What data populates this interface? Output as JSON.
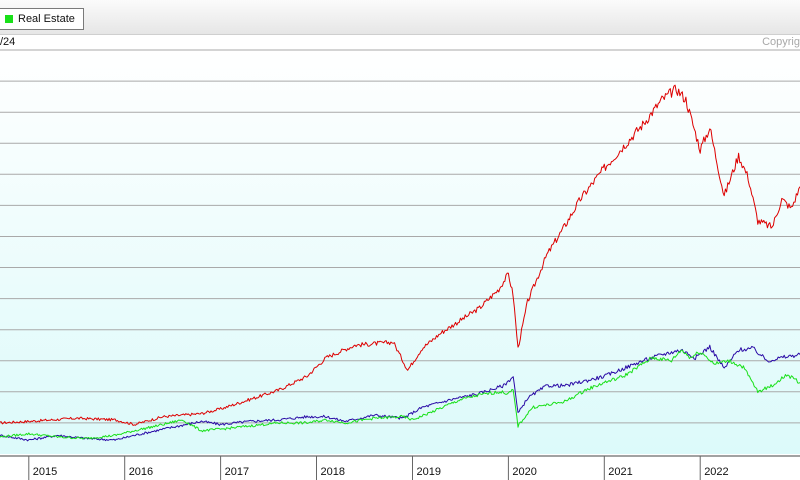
{
  "header": {
    "legend_label": "Real Estate",
    "legend_color": "#19e019",
    "date_fragment": "/24",
    "copyright_text": "Copyrig"
  },
  "chart_data": {
    "type": "line",
    "title": "",
    "xlabel": "",
    "ylabel": "",
    "x_tick_labels": [
      "2015",
      "2016",
      "2017",
      "2018",
      "2019",
      "2020",
      "2021",
      "2022"
    ],
    "xlim": [
      2014.7,
      2023.04
    ],
    "ylim": [
      0,
      13
    ],
    "grid": true,
    "legend_placement": "top-left",
    "series": [
      {
        "name": "",
        "color": "#dd0000",
        "points": [
          [
            2014.7,
            1.0
          ],
          [
            2015.0,
            1.05
          ],
          [
            2015.5,
            1.15
          ],
          [
            2015.9,
            1.1
          ],
          [
            2016.1,
            0.95
          ],
          [
            2016.4,
            1.2
          ],
          [
            2016.8,
            1.3
          ],
          [
            2017.0,
            1.45
          ],
          [
            2017.3,
            1.75
          ],
          [
            2017.6,
            2.05
          ],
          [
            2017.9,
            2.5
          ],
          [
            2018.1,
            3.1
          ],
          [
            2018.4,
            3.5
          ],
          [
            2018.6,
            3.55
          ],
          [
            2018.8,
            3.6
          ],
          [
            2018.95,
            2.7
          ],
          [
            2019.1,
            3.4
          ],
          [
            2019.3,
            3.9
          ],
          [
            2019.5,
            4.3
          ],
          [
            2019.7,
            4.7
          ],
          [
            2019.9,
            5.3
          ],
          [
            2020.0,
            5.8
          ],
          [
            2020.05,
            5.1
          ],
          [
            2020.1,
            3.4
          ],
          [
            2020.2,
            4.9
          ],
          [
            2020.4,
            6.4
          ],
          [
            2020.6,
            7.4
          ],
          [
            2020.75,
            8.2
          ],
          [
            2020.9,
            8.8
          ],
          [
            2021.0,
            9.2
          ],
          [
            2021.2,
            9.9
          ],
          [
            2021.4,
            10.6
          ],
          [
            2021.6,
            11.4
          ],
          [
            2021.75,
            11.75
          ],
          [
            2021.85,
            11.4
          ],
          [
            2022.0,
            9.8
          ],
          [
            2022.1,
            10.5
          ],
          [
            2022.25,
            8.3
          ],
          [
            2022.4,
            9.6
          ],
          [
            2022.5,
            8.9
          ],
          [
            2022.6,
            7.5
          ],
          [
            2022.75,
            7.3
          ],
          [
            2022.85,
            8.2
          ],
          [
            2022.95,
            7.9
          ],
          [
            2023.04,
            8.6
          ]
        ]
      },
      {
        "name": "",
        "color": "#2a0aa6",
        "points": [
          [
            2014.7,
            0.6
          ],
          [
            2015.0,
            0.45
          ],
          [
            2015.3,
            0.6
          ],
          [
            2015.6,
            0.5
          ],
          [
            2015.9,
            0.45
          ],
          [
            2016.1,
            0.6
          ],
          [
            2016.4,
            0.8
          ],
          [
            2016.8,
            1.05
          ],
          [
            2017.0,
            0.95
          ],
          [
            2017.3,
            1.05
          ],
          [
            2017.6,
            1.1
          ],
          [
            2017.9,
            1.2
          ],
          [
            2018.1,
            1.2
          ],
          [
            2018.3,
            1.05
          ],
          [
            2018.6,
            1.25
          ],
          [
            2018.9,
            1.15
          ],
          [
            2019.1,
            1.5
          ],
          [
            2019.4,
            1.75
          ],
          [
            2019.7,
            1.95
          ],
          [
            2019.95,
            2.2
          ],
          [
            2020.05,
            2.5
          ],
          [
            2020.1,
            1.3
          ],
          [
            2020.2,
            1.8
          ],
          [
            2020.4,
            2.2
          ],
          [
            2020.6,
            2.2
          ],
          [
            2020.8,
            2.35
          ],
          [
            2021.0,
            2.5
          ],
          [
            2021.2,
            2.75
          ],
          [
            2021.4,
            3.0
          ],
          [
            2021.6,
            3.2
          ],
          [
            2021.8,
            3.35
          ],
          [
            2021.95,
            3.1
          ],
          [
            2022.1,
            3.45
          ],
          [
            2022.25,
            2.75
          ],
          [
            2022.4,
            3.35
          ],
          [
            2022.55,
            3.4
          ],
          [
            2022.7,
            3.0
          ],
          [
            2022.85,
            3.1
          ],
          [
            2023.04,
            3.2
          ]
        ]
      },
      {
        "name": "Real Estate",
        "color": "#19e019",
        "points": [
          [
            2014.7,
            0.55
          ],
          [
            2015.0,
            0.65
          ],
          [
            2015.3,
            0.55
          ],
          [
            2015.6,
            0.5
          ],
          [
            2015.9,
            0.6
          ],
          [
            2016.1,
            0.75
          ],
          [
            2016.4,
            0.95
          ],
          [
            2016.6,
            1.1
          ],
          [
            2016.8,
            0.75
          ],
          [
            2017.0,
            0.8
          ],
          [
            2017.3,
            0.9
          ],
          [
            2017.6,
            1.0
          ],
          [
            2017.9,
            1.0
          ],
          [
            2018.1,
            1.1
          ],
          [
            2018.3,
            1.0
          ],
          [
            2018.6,
            1.15
          ],
          [
            2018.9,
            1.2
          ],
          [
            2019.0,
            1.1
          ],
          [
            2019.2,
            1.35
          ],
          [
            2019.5,
            1.75
          ],
          [
            2019.7,
            1.9
          ],
          [
            2019.9,
            2.0
          ],
          [
            2020.0,
            1.95
          ],
          [
            2020.05,
            2.05
          ],
          [
            2020.1,
            0.9
          ],
          [
            2020.25,
            1.5
          ],
          [
            2020.45,
            1.6
          ],
          [
            2020.6,
            1.7
          ],
          [
            2020.8,
            2.05
          ],
          [
            2021.0,
            2.3
          ],
          [
            2021.2,
            2.5
          ],
          [
            2021.4,
            2.9
          ],
          [
            2021.5,
            3.1
          ],
          [
            2021.7,
            3.0
          ],
          [
            2021.8,
            3.35
          ],
          [
            2021.9,
            3.1
          ],
          [
            2022.0,
            3.3
          ],
          [
            2022.15,
            2.9
          ],
          [
            2022.3,
            3.0
          ],
          [
            2022.45,
            2.8
          ],
          [
            2022.6,
            2.0
          ],
          [
            2022.75,
            2.2
          ],
          [
            2022.9,
            2.55
          ],
          [
            2023.04,
            2.3
          ]
        ]
      }
    ]
  }
}
